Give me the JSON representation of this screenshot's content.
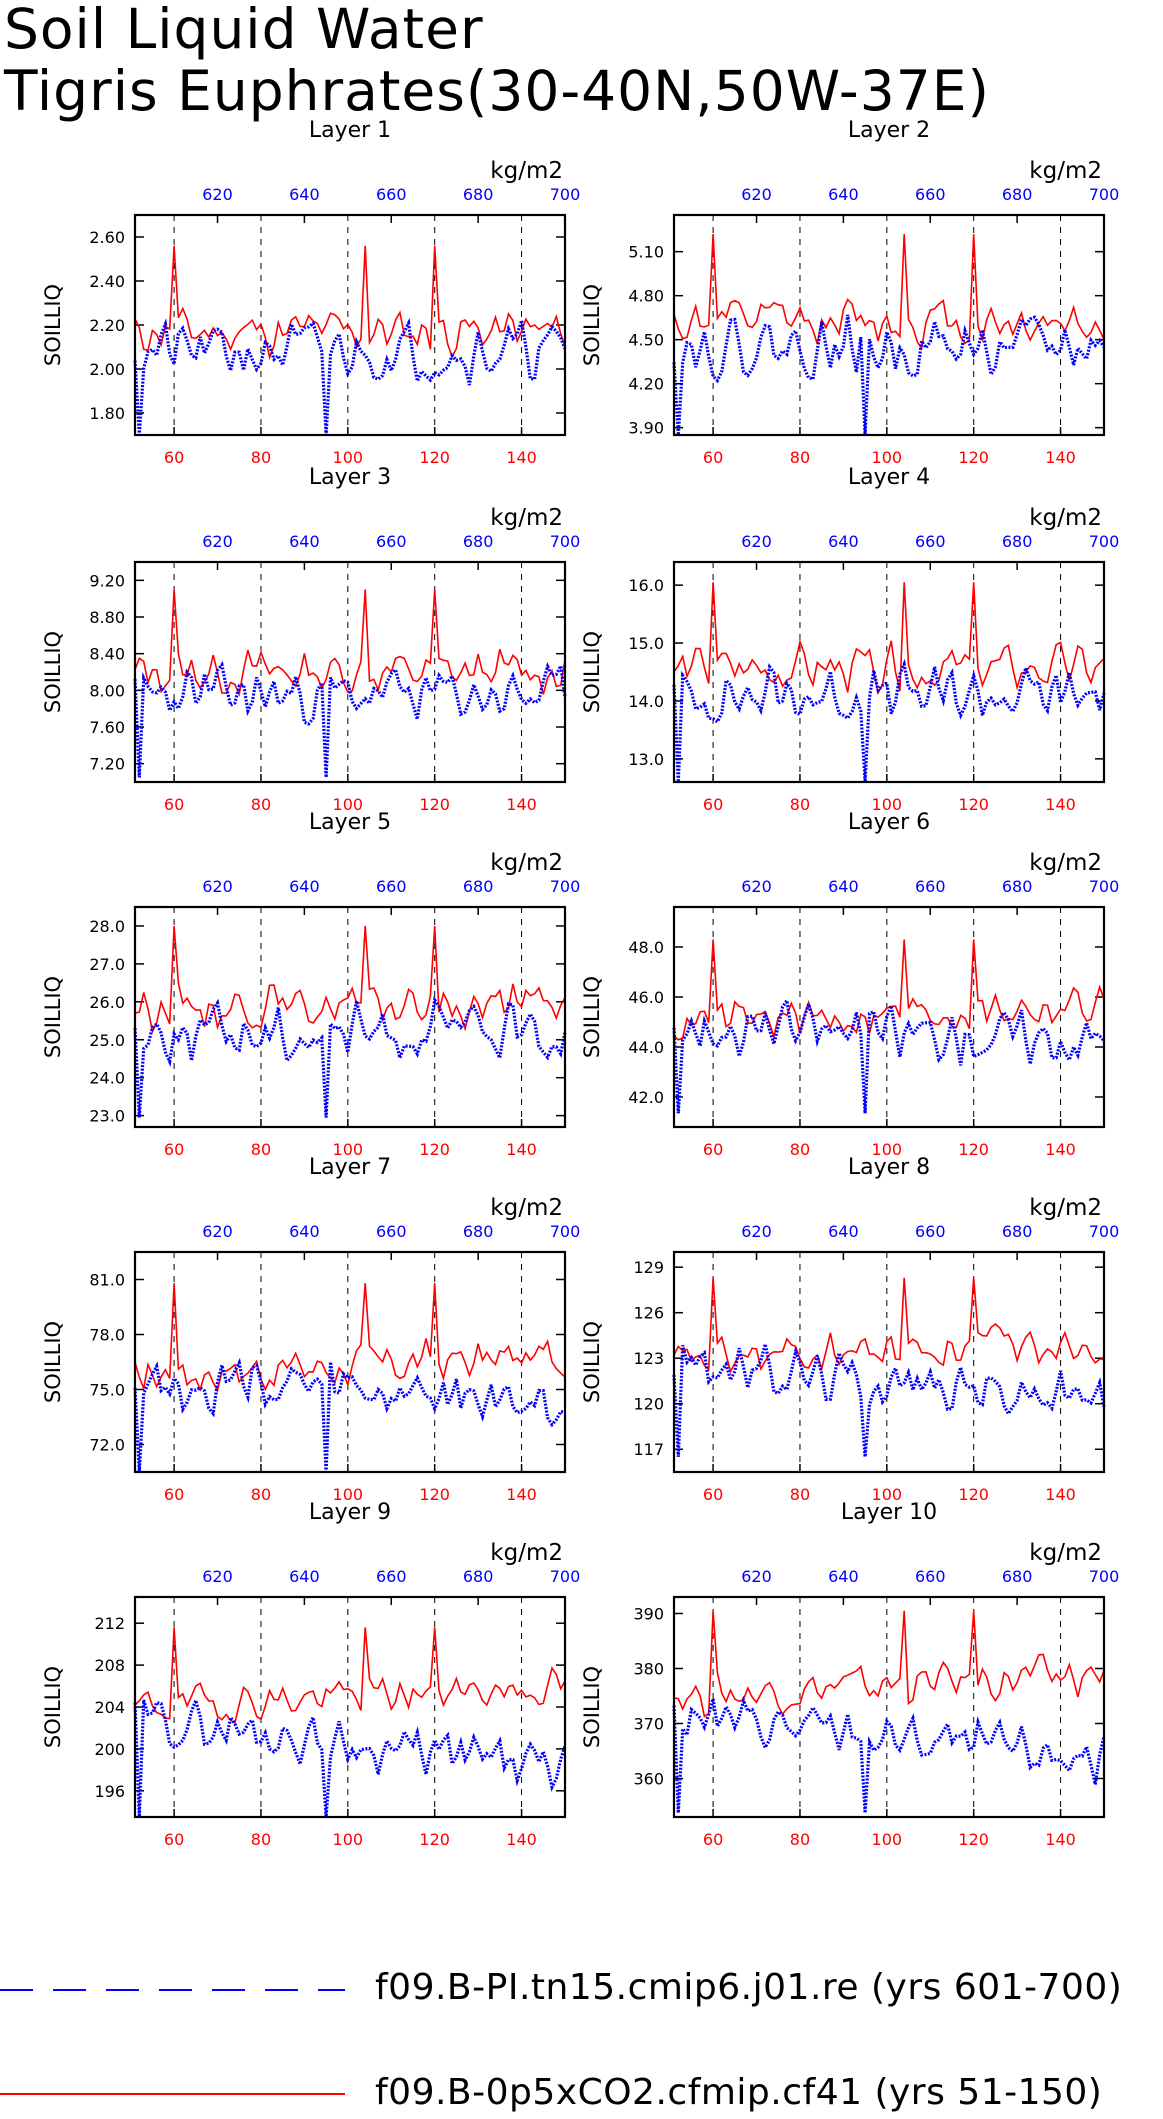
{
  "title_line1": "Soil Liquid Water",
  "title_line2": "Tigris Euphrates(30-40N,50W-37E)",
  "colors": {
    "red_series": "#ff0000",
    "blue_series": "#0000ff",
    "grid": "#000000"
  },
  "chart_data": [
    {
      "type": "line",
      "title": "Layer 1",
      "ylabel": "SOILLIQ",
      "units": "kg/m2",
      "yticks": [
        "1.80",
        "2.00",
        "2.20",
        "2.40",
        "2.60"
      ],
      "ylim": [
        1.7,
        2.7
      ],
      "x_bottom": {
        "range": [
          51,
          150
        ],
        "ticks": [
          60,
          80,
          100,
          120,
          140
        ]
      },
      "x_top": {
        "range": [
          601,
          700
        ],
        "ticks": [
          620,
          640,
          660,
          680,
          700
        ]
      },
      "series": [
        {
          "name": "f09.B-0p5xCO2.cfmip.cf41 (yrs 51-150)",
          "axis": "bottom",
          "mean": 2.17,
          "amp": 0.13,
          "trend": 0,
          "seed": 11
        },
        {
          "name": "f09.B-PI.tn15.cmip6.j01.re (yrs 601-700)",
          "axis": "top",
          "mean": 2.08,
          "amp": 0.16,
          "trend": 0,
          "seed": 21
        }
      ]
    },
    {
      "type": "line",
      "title": "Layer 2",
      "ylabel": "SOILLIQ",
      "units": "kg/m2",
      "yticks": [
        "3.90",
        "4.20",
        "4.50",
        "4.80",
        "5.10"
      ],
      "ylim": [
        3.85,
        5.35
      ],
      "x_bottom": {
        "range": [
          51,
          150
        ],
        "ticks": [
          60,
          80,
          100,
          120,
          140
        ]
      },
      "x_top": {
        "range": [
          601,
          700
        ],
        "ticks": [
          620,
          640,
          660,
          680,
          700
        ]
      },
      "series": [
        {
          "name": "f09.B-0p5xCO2.cfmip.cf41 (yrs 51-150)",
          "axis": "bottom",
          "mean": 4.62,
          "amp": 0.2,
          "trend": 0,
          "seed": 12
        },
        {
          "name": "f09.B-PI.tn15.cmip6.j01.re (yrs 601-700)",
          "axis": "top",
          "mean": 4.45,
          "amp": 0.24,
          "trend": 0,
          "seed": 22
        }
      ]
    },
    {
      "type": "line",
      "title": "Layer 3",
      "ylabel": "SOILLIQ",
      "units": "kg/m2",
      "yticks": [
        "7.20",
        "7.60",
        "8.00",
        "8.40",
        "8.80",
        "9.20"
      ],
      "ylim": [
        7.0,
        9.4
      ],
      "x_bottom": {
        "range": [
          51,
          150
        ],
        "ticks": [
          60,
          80,
          100,
          120,
          140
        ]
      },
      "x_top": {
        "range": [
          601,
          700
        ],
        "ticks": [
          620,
          640,
          660,
          680,
          700
        ]
      },
      "series": [
        {
          "name": "f09.B-0p5xCO2.cfmip.cf41 (yrs 51-150)",
          "axis": "bottom",
          "mean": 8.2,
          "amp": 0.3,
          "trend": 0,
          "seed": 13
        },
        {
          "name": "f09.B-PI.tn15.cmip6.j01.re (yrs 601-700)",
          "axis": "top",
          "mean": 7.95,
          "amp": 0.36,
          "trend": 0,
          "seed": 23
        }
      ]
    },
    {
      "type": "line",
      "title": "Layer 4",
      "ylabel": "SOILLIQ",
      "units": "kg/m2",
      "yticks": [
        "13.0",
        "14.0",
        "15.0",
        "16.0"
      ],
      "ylim": [
        12.6,
        16.4
      ],
      "x_bottom": {
        "range": [
          51,
          150
        ],
        "ticks": [
          60,
          80,
          100,
          120,
          140
        ]
      },
      "x_top": {
        "range": [
          601,
          700
        ],
        "ticks": [
          620,
          640,
          660,
          680,
          700
        ]
      },
      "series": [
        {
          "name": "f09.B-0p5xCO2.cfmip.cf41 (yrs 51-150)",
          "axis": "bottom",
          "mean": 14.55,
          "amp": 0.5,
          "trend": 0,
          "seed": 14
        },
        {
          "name": "f09.B-PI.tn15.cmip6.j01.re (yrs 601-700)",
          "axis": "top",
          "mean": 14.1,
          "amp": 0.6,
          "trend": 0,
          "seed": 24
        }
      ]
    },
    {
      "type": "line",
      "title": "Layer 5",
      "ylabel": "SOILLIQ",
      "units": "kg/m2",
      "yticks": [
        "23.0",
        "24.0",
        "25.0",
        "26.0",
        "27.0",
        "28.0"
      ],
      "ylim": [
        22.7,
        28.5
      ],
      "x_bottom": {
        "range": [
          51,
          150
        ],
        "ticks": [
          60,
          80,
          100,
          120,
          140
        ]
      },
      "x_top": {
        "range": [
          601,
          700
        ],
        "ticks": [
          620,
          640,
          660,
          680,
          700
        ]
      },
      "series": [
        {
          "name": "f09.B-0p5xCO2.cfmip.cf41 (yrs 51-150)",
          "axis": "bottom",
          "mean": 25.9,
          "amp": 0.7,
          "trend": 0,
          "seed": 15
        },
        {
          "name": "f09.B-PI.tn15.cmip6.j01.re (yrs 601-700)",
          "axis": "top",
          "mean": 25.2,
          "amp": 0.9,
          "trend": 0,
          "seed": 25
        }
      ]
    },
    {
      "type": "line",
      "title": "Layer 6",
      "ylabel": "SOILLIQ",
      "units": "kg/m2",
      "yticks": [
        "42.0",
        "44.0",
        "46.0",
        "48.0"
      ],
      "ylim": [
        40.8,
        49.6
      ],
      "x_bottom": {
        "range": [
          51,
          150
        ],
        "ticks": [
          60,
          80,
          100,
          120,
          140
        ]
      },
      "x_top": {
        "range": [
          601,
          700
        ],
        "ticks": [
          620,
          640,
          660,
          680,
          700
        ]
      },
      "series": [
        {
          "name": "f09.B-0p5xCO2.cfmip.cf41 (yrs 51-150)",
          "axis": "bottom",
          "mean": 45.3,
          "amp": 1.0,
          "trend": 0.8,
          "seed": 16
        },
        {
          "name": "f09.B-PI.tn15.cmip6.j01.re (yrs 601-700)",
          "axis": "top",
          "mean": 44.6,
          "amp": 1.3,
          "trend": -0.5,
          "seed": 26
        }
      ]
    },
    {
      "type": "line",
      "title": "Layer 7",
      "ylabel": "SOILLIQ",
      "units": "kg/m2",
      "yticks": [
        "72.0",
        "75.0",
        "78.0",
        "81.0"
      ],
      "ylim": [
        70.5,
        82.5
      ],
      "x_bottom": {
        "range": [
          51,
          150
        ],
        "ticks": [
          60,
          80,
          100,
          120,
          140
        ]
      },
      "x_top": {
        "range": [
          601,
          700
        ],
        "ticks": [
          620,
          640,
          660,
          680,
          700
        ]
      },
      "series": [
        {
          "name": "f09.B-0p5xCO2.cfmip.cf41 (yrs 51-150)",
          "axis": "bottom",
          "mean": 76.3,
          "amp": 1.5,
          "trend": 1.0,
          "seed": 17
        },
        {
          "name": "f09.B-PI.tn15.cmip6.j01.re (yrs 601-700)",
          "axis": "top",
          "mean": 74.8,
          "amp": 1.9,
          "trend": -1.5,
          "seed": 27
        }
      ]
    },
    {
      "type": "line",
      "title": "Layer 8",
      "ylabel": "SOILLIQ",
      "units": "kg/m2",
      "yticks": [
        "117",
        "120",
        "123",
        "126",
        "129"
      ],
      "ylim": [
        115.5,
        130
      ],
      "x_bottom": {
        "range": [
          51,
          150
        ],
        "ticks": [
          60,
          80,
          100,
          120,
          140
        ]
      },
      "x_top": {
        "range": [
          601,
          700
        ],
        "ticks": [
          620,
          640,
          660,
          680,
          700
        ]
      },
      "series": [
        {
          "name": "f09.B-0p5xCO2.cfmip.cf41 (yrs 51-150)",
          "axis": "bottom",
          "mean": 123.5,
          "amp": 1.6,
          "trend": 1.5,
          "seed": 18
        },
        {
          "name": "f09.B-PI.tn15.cmip6.j01.re (yrs 601-700)",
          "axis": "top",
          "mean": 121.5,
          "amp": 2.0,
          "trend": -2.5,
          "seed": 28
        }
      ]
    },
    {
      "type": "line",
      "title": "Layer 9",
      "ylabel": "SOILLIQ",
      "units": "kg/m2",
      "yticks": [
        "196",
        "200",
        "204",
        "208",
        "212"
      ],
      "ylim": [
        193.5,
        214.5
      ],
      "x_bottom": {
        "range": [
          51,
          150
        ],
        "ticks": [
          60,
          80,
          100,
          120,
          140
        ]
      },
      "x_top": {
        "range": [
          601,
          700
        ],
        "ticks": [
          620,
          640,
          660,
          680,
          700
        ]
      },
      "series": [
        {
          "name": "f09.B-0p5xCO2.cfmip.cf41 (yrs 51-150)",
          "axis": "bottom",
          "mean": 205.0,
          "amp": 2.2,
          "trend": 2.0,
          "seed": 19
        },
        {
          "name": "f09.B-PI.tn15.cmip6.j01.re (yrs 601-700)",
          "axis": "top",
          "mean": 200.5,
          "amp": 2.8,
          "trend": -5.0,
          "seed": 29
        }
      ]
    },
    {
      "type": "line",
      "title": "Layer 10",
      "ylabel": "SOILLIQ",
      "units": "kg/m2",
      "yticks": [
        "360",
        "370",
        "380",
        "390"
      ],
      "ylim": [
        353,
        393
      ],
      "x_bottom": {
        "range": [
          51,
          150
        ],
        "ticks": [
          60,
          80,
          100,
          120,
          140
        ]
      },
      "x_top": {
        "range": [
          601,
          700
        ],
        "ticks": [
          620,
          640,
          660,
          680,
          700
        ]
      },
      "series": [
        {
          "name": "f09.B-0p5xCO2.cfmip.cf41 (yrs 51-150)",
          "axis": "bottom",
          "mean": 377.0,
          "amp": 4.5,
          "trend": 4.0,
          "seed": 20
        },
        {
          "name": "f09.B-PI.tn15.cmip6.j01.re (yrs 601-700)",
          "axis": "top",
          "mean": 367.5,
          "amp": 5.5,
          "trend": -8.0,
          "seed": 30
        }
      ]
    }
  ],
  "legend": {
    "blue_label": "f09.B-PI.tn15.cmip6.j01.re (yrs 601-700)",
    "red_label": "f09.B-0p5xCO2.cfmip.cf41 (yrs 51-150)"
  }
}
